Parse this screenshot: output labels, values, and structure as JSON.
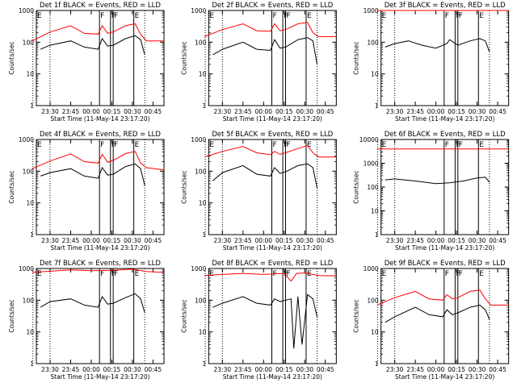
{
  "figure": {
    "date": "2014-05-11",
    "start": "23:17:20",
    "x_ticks": [
      "23:30",
      "23:45",
      "00:00",
      "00:15",
      "00:30",
      "00:45"
    ],
    "x_range": [
      "23:20",
      "00:53"
    ],
    "markers": [
      {
        "time": "00:06",
        "label": "F",
        "style": "solid"
      },
      {
        "time": "00:14",
        "label": "F",
        "style": "solid"
      },
      {
        "time": "00:16",
        "label": "F",
        "style": "solid"
      },
      {
        "time": "00:31",
        "label": "E",
        "style": "solid"
      }
    ],
    "dotted_lines": [
      "23:17:30",
      "23:30",
      "00:39"
    ],
    "colors": {
      "events": "#000000",
      "lld": "#ff0000",
      "axes": "#000000",
      "background": "#ffffff"
    }
  },
  "chart_data": [
    {
      "type": "line",
      "title": "Det 1f BLACK = Events, RED = LLD",
      "xlabel": "Start Time (11-May-14 23:17:20)",
      "ylabel": "Counts/sec",
      "yscale": "log",
      "ylim": [
        1,
        1000
      ],
      "y_ticks": [
        "1",
        "10",
        "100",
        "1000"
      ],
      "series": [
        {
          "name": "BLACK = Events",
          "color": "#000000",
          "x": [
            "23:23",
            "23:30",
            "23:45",
            "23:55",
            "00:05",
            "00:08",
            "00:12",
            "00:16",
            "00:25",
            "00:32",
            "00:36",
            "00:39"
          ],
          "values": [
            60,
            80,
            110,
            70,
            60,
            130,
            75,
            80,
            130,
            160,
            120,
            40
          ]
        },
        {
          "name": "RED = LLD",
          "color": "#ff0000",
          "x": [
            "23:17",
            "23:30",
            "23:45",
            "23:55",
            "00:05",
            "00:08",
            "00:12",
            "00:16",
            "00:25",
            "00:32",
            "00:36",
            "00:40",
            "00:53"
          ],
          "values": [
            110,
            210,
            330,
            190,
            180,
            330,
            190,
            210,
            330,
            380,
            180,
            110,
            110
          ]
        }
      ]
    },
    {
      "type": "line",
      "title": "Det 2f BLACK = Events, RED = LLD",
      "xlabel": "Start Time (11-May-14 23:17:20)",
      "ylabel": "Counts/sec",
      "yscale": "log",
      "ylim": [
        1,
        1000
      ],
      "y_ticks": [
        "1",
        "10",
        "100",
        "1000"
      ],
      "series": [
        {
          "name": "BLACK = Events",
          "color": "#000000",
          "x": [
            "23:23",
            "23:30",
            "23:45",
            "23:55",
            "00:05",
            "00:08",
            "00:12",
            "00:16",
            "00:25",
            "00:32",
            "00:36",
            "00:39"
          ],
          "values": [
            40,
            60,
            100,
            60,
            55,
            120,
            65,
            70,
            120,
            140,
            110,
            20
          ]
        },
        {
          "name": "RED = LLD",
          "color": "#ff0000",
          "x": [
            "23:17",
            "23:30",
            "23:45",
            "23:55",
            "00:05",
            "00:08",
            "00:12",
            "00:16",
            "00:25",
            "00:32",
            "00:36",
            "00:40",
            "00:53"
          ],
          "values": [
            150,
            250,
            380,
            230,
            220,
            380,
            230,
            250,
            380,
            420,
            200,
            150,
            150
          ]
        }
      ]
    },
    {
      "type": "line",
      "title": "Det 3f BLACK = Events, RED = LLD",
      "xlabel": "Start Time (11-May-14 23:17:20)",
      "ylabel": "Counts/sec",
      "yscale": "log",
      "ylim": [
        1,
        1000
      ],
      "y_ticks": [
        "1",
        "10",
        "100",
        "1000"
      ],
      "series": [
        {
          "name": "BLACK = Events",
          "color": "#000000",
          "x": [
            "23:23",
            "23:30",
            "23:40",
            "23:50",
            "00:00",
            "00:08",
            "00:10",
            "00:16",
            "00:25",
            "00:32",
            "00:36",
            "00:39"
          ],
          "values": [
            70,
            90,
            110,
            80,
            65,
            90,
            120,
            80,
            110,
            130,
            110,
            50
          ]
        },
        {
          "name": "RED = LLD",
          "color": "#ff0000",
          "x": [
            "23:17",
            "00:53"
          ],
          "values": [
            1000,
            1000
          ]
        }
      ]
    },
    {
      "type": "line",
      "title": "Det 4f BLACK = Events, RED = LLD",
      "xlabel": "Start Time (11-May-14 23:17:20)",
      "ylabel": "Counts/sec",
      "yscale": "log",
      "ylim": [
        1,
        1000
      ],
      "y_ticks": [
        "1",
        "10",
        "100",
        "1000"
      ],
      "series": [
        {
          "name": "BLACK = Events",
          "color": "#000000",
          "x": [
            "23:23",
            "23:30",
            "23:45",
            "23:55",
            "00:05",
            "00:08",
            "00:12",
            "00:16",
            "00:25",
            "00:32",
            "00:36",
            "00:39"
          ],
          "values": [
            70,
            90,
            120,
            70,
            60,
            130,
            75,
            80,
            140,
            170,
            120,
            35
          ]
        },
        {
          "name": "RED = LLD",
          "color": "#ff0000",
          "x": [
            "23:17",
            "23:30",
            "23:45",
            "23:55",
            "00:05",
            "00:08",
            "00:12",
            "00:16",
            "00:25",
            "00:32",
            "00:36",
            "00:40",
            "00:53"
          ],
          "values": [
            120,
            210,
            350,
            200,
            180,
            340,
            190,
            220,
            360,
            420,
            180,
            130,
            110
          ]
        }
      ]
    },
    {
      "type": "line",
      "title": "Det 5f BLACK = Events, RED = LLD",
      "xlabel": "Start Time (11-May-14 23:17:20)",
      "ylabel": "Counts/sec",
      "yscale": "log",
      "ylim": [
        1,
        1000
      ],
      "y_ticks": [
        "1",
        "10",
        "100",
        "1000"
      ],
      "series": [
        {
          "name": "BLACK = Events",
          "color": "#000000",
          "x": [
            "23:23",
            "23:30",
            "23:45",
            "23:55",
            "00:05",
            "00:08",
            "00:12",
            "00:16",
            "00:25",
            "00:32",
            "00:36",
            "00:39"
          ],
          "values": [
            50,
            90,
            150,
            80,
            70,
            130,
            85,
            95,
            150,
            170,
            130,
            30
          ]
        },
        {
          "name": "RED = LLD",
          "color": "#ff0000",
          "x": [
            "23:17",
            "23:30",
            "23:45",
            "23:55",
            "00:05",
            "00:08",
            "00:12",
            "00:16",
            "00:25",
            "00:32",
            "00:36",
            "00:40",
            "00:53"
          ],
          "values": [
            280,
            420,
            600,
            380,
            330,
            420,
            340,
            380,
            520,
            650,
            380,
            280,
            280
          ]
        }
      ]
    },
    {
      "type": "line",
      "title": "Det 6f BLACK = Events, RED = LLD",
      "xlabel": "Start Time (11-May-14 23:17:20)",
      "ylabel": "Counts/sec",
      "yscale": "log",
      "ylim": [
        1,
        10000
      ],
      "y_ticks": [
        "1",
        "10",
        "100",
        "1000",
        "10000"
      ],
      "series": [
        {
          "name": "BLACK = Events",
          "color": "#000000",
          "x": [
            "23:23",
            "23:30",
            "23:45",
            "00:00",
            "00:10",
            "00:20",
            "00:30",
            "00:36",
            "00:39"
          ],
          "values": [
            200,
            220,
            180,
            140,
            150,
            180,
            240,
            260,
            160
          ]
        },
        {
          "name": "RED = LLD",
          "color": "#ff0000",
          "x": [
            "23:17",
            "00:53"
          ],
          "values": [
            4000,
            4000
          ]
        }
      ]
    },
    {
      "type": "line",
      "title": "Det 7f BLACK = Events, RED = LLD",
      "xlabel": "Start Time (11-May-14 23:17:20)",
      "ylabel": "Counts/sec",
      "yscale": "log",
      "ylim": [
        1,
        1000
      ],
      "y_ticks": [
        "1",
        "10",
        "100",
        "1000"
      ],
      "series": [
        {
          "name": "BLACK = Events",
          "color": "#000000",
          "x": [
            "23:23",
            "23:30",
            "23:45",
            "23:55",
            "00:05",
            "00:08",
            "00:12",
            "00:16",
            "00:25",
            "00:32",
            "00:36",
            "00:39"
          ],
          "values": [
            60,
            90,
            110,
            70,
            60,
            130,
            75,
            80,
            120,
            160,
            110,
            40
          ]
        },
        {
          "name": "RED = LLD",
          "color": "#ff0000",
          "x": [
            "23:17",
            "23:30",
            "23:45",
            "00:00",
            "00:15",
            "00:30",
            "00:40",
            "00:53"
          ],
          "values": [
            750,
            820,
            900,
            850,
            880,
            950,
            800,
            760
          ]
        }
      ]
    },
    {
      "type": "line",
      "title": "Det 8f BLACK = Events, RED = LLD",
      "xlabel": "Start Time (11-May-14 23:17:20)",
      "ylabel": "Counts/sec",
      "yscale": "log",
      "ylim": [
        1,
        1000
      ],
      "y_ticks": [
        "1",
        "10",
        "100",
        "1000"
      ],
      "series": [
        {
          "name": "BLACK = Events",
          "color": "#000000",
          "x": [
            "23:23",
            "23:30",
            "23:45",
            "23:55",
            "00:05",
            "00:08",
            "00:12",
            "00:16",
            "00:20",
            "00:22",
            "00:25",
            "00:28",
            "00:32",
            "00:36",
            "00:39"
          ],
          "values": [
            60,
            80,
            130,
            80,
            70,
            110,
            90,
            100,
            110,
            3,
            130,
            4,
            150,
            110,
            30
          ]
        },
        {
          "name": "RED = LLD",
          "color": "#ff0000",
          "x": [
            "23:17",
            "23:30",
            "23:45",
            "00:00",
            "00:15",
            "00:20",
            "00:24",
            "00:30",
            "00:40",
            "00:53"
          ],
          "values": [
            600,
            650,
            700,
            650,
            700,
            400,
            700,
            720,
            600,
            580
          ]
        }
      ]
    },
    {
      "type": "line",
      "title": "Det 9f BLACK = Events, RED = LLD",
      "xlabel": "Start Time (11-May-14 23:17:20)",
      "ylabel": "Counts/sec",
      "yscale": "log",
      "ylim": [
        1,
        1000
      ],
      "y_ticks": [
        "1",
        "10",
        "100",
        "1000"
      ],
      "series": [
        {
          "name": "BLACK = Events",
          "color": "#000000",
          "x": [
            "23:23",
            "23:30",
            "23:45",
            "23:55",
            "00:05",
            "00:08",
            "00:12",
            "00:16",
            "00:25",
            "00:32",
            "00:36",
            "00:39"
          ],
          "values": [
            20,
            30,
            60,
            35,
            30,
            50,
            35,
            40,
            60,
            70,
            50,
            25
          ]
        },
        {
          "name": "RED = LLD",
          "color": "#ff0000",
          "x": [
            "23:17",
            "23:30",
            "23:45",
            "23:55",
            "00:05",
            "00:08",
            "00:12",
            "00:16",
            "00:25",
            "00:32",
            "00:36",
            "00:40",
            "00:53"
          ],
          "values": [
            70,
            120,
            190,
            110,
            100,
            150,
            110,
            120,
            190,
            210,
            110,
            70,
            70
          ]
        }
      ]
    }
  ]
}
